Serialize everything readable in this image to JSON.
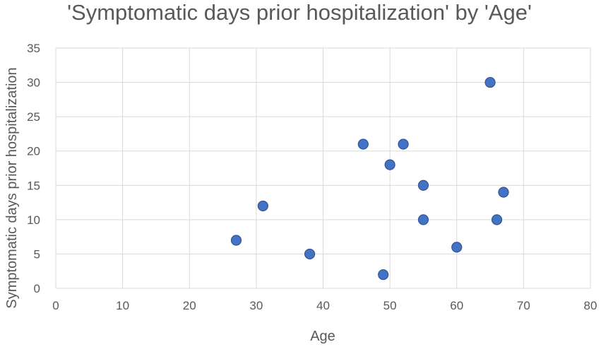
{
  "chart_data": {
    "type": "scatter",
    "title": "'Symptomatic days prior hospitalization' by 'Age'",
    "xlabel": "Age",
    "ylabel": "Symptomatic days prior hospitalization",
    "xlim": [
      0,
      80
    ],
    "ylim": [
      0,
      35
    ],
    "x_ticks": [
      0,
      10,
      20,
      30,
      40,
      50,
      60,
      70,
      80
    ],
    "y_ticks": [
      0,
      5,
      10,
      15,
      20,
      25,
      30,
      35
    ],
    "grid": true,
    "legend": "none",
    "marker_color": "#4472c4",
    "points": [
      {
        "x": 27,
        "y": 7
      },
      {
        "x": 31,
        "y": 12
      },
      {
        "x": 38,
        "y": 5
      },
      {
        "x": 46,
        "y": 21
      },
      {
        "x": 49,
        "y": 2
      },
      {
        "x": 50,
        "y": 18
      },
      {
        "x": 52,
        "y": 21
      },
      {
        "x": 55,
        "y": 15
      },
      {
        "x": 55,
        "y": 10
      },
      {
        "x": 60,
        "y": 6
      },
      {
        "x": 65,
        "y": 30
      },
      {
        "x": 66,
        "y": 10
      },
      {
        "x": 67,
        "y": 14
      }
    ]
  }
}
